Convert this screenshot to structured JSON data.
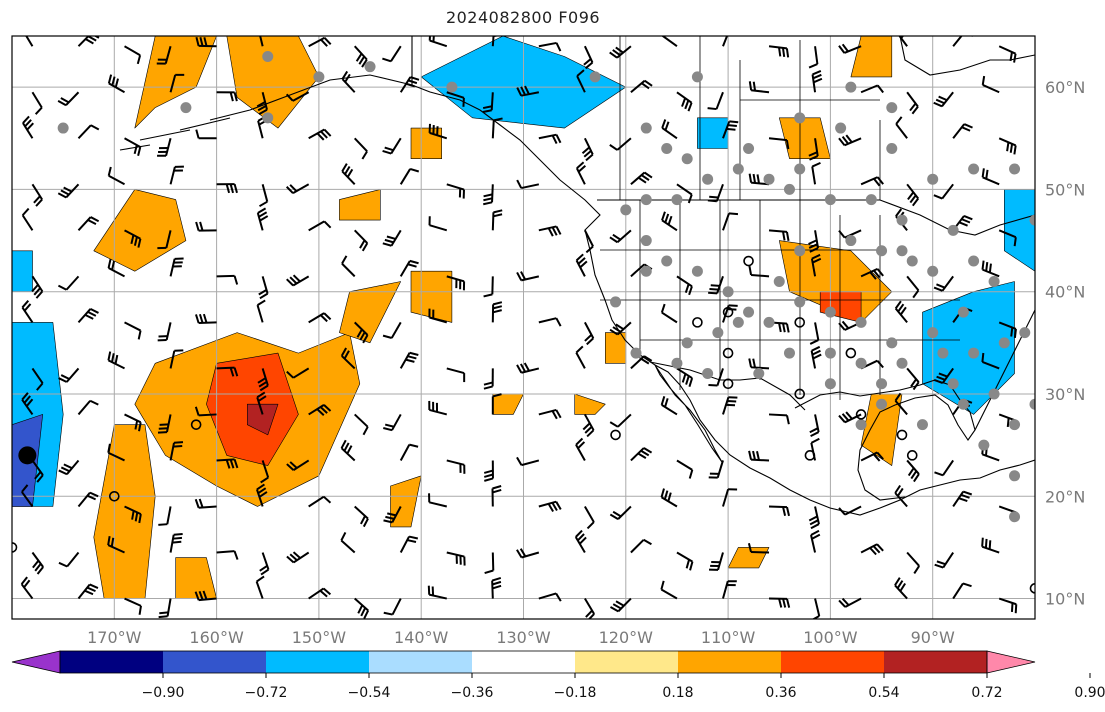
{
  "title": "2024082800 F096",
  "map": {
    "lon_range": [
      -180,
      -80
    ],
    "lat_range": [
      8,
      65
    ],
    "lon_ticks": [
      {
        "value": -170,
        "label": "170°W"
      },
      {
        "value": -160,
        "label": "160°W"
      },
      {
        "value": -150,
        "label": "150°W"
      },
      {
        "value": -140,
        "label": "140°W"
      },
      {
        "value": -130,
        "label": "130°W"
      },
      {
        "value": -120,
        "label": "120°W"
      },
      {
        "value": -110,
        "label": "110°W"
      },
      {
        "value": -100,
        "label": "100°W"
      },
      {
        "value": -90,
        "label": "90°W"
      }
    ],
    "lat_ticks": [
      {
        "value": 60,
        "label": "60°N"
      },
      {
        "value": 50,
        "label": "50°N"
      },
      {
        "value": 40,
        "label": "40°N"
      },
      {
        "value": 30,
        "label": "30°N"
      },
      {
        "value": 20,
        "label": "20°N"
      },
      {
        "value": 10,
        "label": "10°N"
      }
    ],
    "grid": true
  },
  "colorbar": {
    "colors": [
      "#9933cc",
      "#000080",
      "#3355cc",
      "#00bbff",
      "#aaddff",
      "#ffffff",
      "#ffe88a",
      "#ffa500",
      "#ff4500",
      "#b22222",
      "#ff88aa"
    ],
    "tick_labels": [
      "−0.90",
      "−0.72",
      "−0.54",
      "−0.36",
      "−0.18",
      "0.18",
      "0.36",
      "0.54",
      "0.72",
      "0.90"
    ]
  },
  "anomaly_regions": [
    {
      "sign": "positive",
      "level": 0.36,
      "points": [
        [
          -168,
          56
        ],
        [
          -166,
          65
        ],
        [
          -160,
          65
        ],
        [
          -162,
          60
        ],
        [
          -166,
          58
        ]
      ]
    },
    {
      "sign": "positive",
      "level": 0.36,
      "points": [
        [
          -159,
          65
        ],
        [
          -152,
          65
        ],
        [
          -150,
          61
        ],
        [
          -154,
          56
        ],
        [
          -158,
          59
        ]
      ]
    },
    {
      "sign": "positive",
      "level": 0.36,
      "points": [
        [
          -172,
          44
        ],
        [
          -168,
          50
        ],
        [
          -164,
          49
        ],
        [
          -163,
          45
        ],
        [
          -168,
          42
        ]
      ]
    },
    {
      "sign": "positive",
      "level": 0.36,
      "points": [
        [
          -166,
          33
        ],
        [
          -158,
          36
        ],
        [
          -152,
          34
        ],
        [
          -147,
          36
        ],
        [
          -146,
          31
        ],
        [
          -150,
          22
        ],
        [
          -156,
          19
        ],
        [
          -160,
          21
        ],
        [
          -165,
          24
        ],
        [
          -168,
          29
        ]
      ]
    },
    {
      "sign": "positive",
      "level": 0.54,
      "points": [
        [
          -160,
          33
        ],
        [
          -154,
          34
        ],
        [
          -152,
          28
        ],
        [
          -155,
          23
        ],
        [
          -159,
          24
        ],
        [
          -161,
          29
        ]
      ]
    },
    {
      "sign": "positive",
      "level": 0.72,
      "points": [
        [
          -157,
          29
        ],
        [
          -154,
          29
        ],
        [
          -155,
          26
        ],
        [
          -157,
          27
        ]
      ]
    },
    {
      "sign": "positive",
      "level": 0.36,
      "points": [
        [
          -170,
          27
        ],
        [
          -167,
          27
        ],
        [
          -166,
          20
        ],
        [
          -167,
          10
        ],
        [
          -171,
          10
        ],
        [
          -172,
          16
        ]
      ]
    },
    {
      "sign": "positive",
      "level": 0.36,
      "points": [
        [
          -164,
          14
        ],
        [
          -161,
          14
        ],
        [
          -160,
          10
        ],
        [
          -164,
          10
        ]
      ]
    },
    {
      "sign": "positive",
      "level": 0.36,
      "points": [
        [
          -141,
          42
        ],
        [
          -137,
          42
        ],
        [
          -137,
          37
        ],
        [
          -141,
          38
        ]
      ]
    },
    {
      "sign": "positive",
      "level": 0.36,
      "points": [
        [
          -147,
          40
        ],
        [
          -142,
          41
        ],
        [
          -145,
          35
        ],
        [
          -148,
          36
        ]
      ]
    },
    {
      "sign": "positive",
      "level": 0.36,
      "points": [
        [
          -141,
          56
        ],
        [
          -138,
          56
        ],
        [
          -138,
          53
        ],
        [
          -141,
          53
        ]
      ]
    },
    {
      "sign": "positive",
      "level": 0.36,
      "points": [
        [
          -148,
          49
        ],
        [
          -144,
          50
        ],
        [
          -144,
          47
        ],
        [
          -148,
          47
        ]
      ]
    },
    {
      "sign": "positive",
      "level": 0.36,
      "points": [
        [
          -143,
          21
        ],
        [
          -140,
          22
        ],
        [
          -141,
          17
        ],
        [
          -143,
          17
        ]
      ]
    },
    {
      "sign": "positive",
      "level": 0.36,
      "points": [
        [
          -105,
          45
        ],
        [
          -98,
          44
        ],
        [
          -94,
          40
        ],
        [
          -97,
          37
        ],
        [
          -104,
          40
        ]
      ]
    },
    {
      "sign": "positive",
      "level": 0.54,
      "points": [
        [
          -101,
          40
        ],
        [
          -97,
          40
        ],
        [
          -97,
          37
        ],
        [
          -101,
          38
        ]
      ]
    },
    {
      "sign": "positive",
      "level": 0.36,
      "points": [
        [
          -105,
          57
        ],
        [
          -101,
          57
        ],
        [
          -100,
          53
        ],
        [
          -104,
          53
        ]
      ]
    },
    {
      "sign": "positive",
      "level": 0.36,
      "points": [
        [
          -97,
          65
        ],
        [
          -94,
          65
        ],
        [
          -94,
          61
        ],
        [
          -98,
          61
        ]
      ]
    },
    {
      "sign": "positive",
      "level": 0.36,
      "points": [
        [
          -96,
          30
        ],
        [
          -93,
          30
        ],
        [
          -94,
          23
        ],
        [
          -97,
          25
        ]
      ]
    },
    {
      "sign": "positive",
      "level": 0.36,
      "points": [
        [
          -109,
          15
        ],
        [
          -106,
          15
        ],
        [
          -107,
          13
        ],
        [
          -110,
          13
        ]
      ]
    },
    {
      "sign": "positive",
      "level": 0.36,
      "points": [
        [
          -122,
          36
        ],
        [
          -120,
          36
        ],
        [
          -120,
          33
        ],
        [
          -122,
          33
        ]
      ]
    },
    {
      "sign": "positive",
      "level": 0.36,
      "points": [
        [
          -133,
          30
        ],
        [
          -130,
          30
        ],
        [
          -131,
          28
        ],
        [
          -133,
          28
        ]
      ]
    },
    {
      "sign": "positive",
      "level": 0.36,
      "points": [
        [
          -125,
          30
        ],
        [
          -122,
          29
        ],
        [
          -123,
          28
        ],
        [
          -125,
          28
        ]
      ]
    },
    {
      "sign": "negative",
      "level": -0.36,
      "points": [
        [
          -140,
          61
        ],
        [
          -132,
          65
        ],
        [
          -126,
          63
        ],
        [
          -120,
          60
        ],
        [
          -126,
          56
        ],
        [
          -135,
          57
        ]
      ]
    },
    {
      "sign": "negative",
      "level": -0.36,
      "points": [
        [
          -180,
          37
        ],
        [
          -176,
          37
        ],
        [
          -175,
          28
        ],
        [
          -176,
          19
        ],
        [
          -180,
          19
        ]
      ]
    },
    {
      "sign": "negative",
      "level": -0.54,
      "points": [
        [
          -180,
          27
        ],
        [
          -177,
          28
        ],
        [
          -178,
          19
        ],
        [
          -180,
          19
        ]
      ]
    },
    {
      "sign": "negative",
      "level": -0.36,
      "points": [
        [
          -180,
          44
        ],
        [
          -178,
          44
        ],
        [
          -178,
          40
        ],
        [
          -180,
          40
        ]
      ]
    },
    {
      "sign": "negative",
      "level": -0.36,
      "points": [
        [
          -91,
          38
        ],
        [
          -86,
          40
        ],
        [
          -82,
          41
        ],
        [
          -82,
          32
        ],
        [
          -86,
          28
        ],
        [
          -91,
          31
        ]
      ]
    },
    {
      "sign": "negative",
      "level": -0.36,
      "points": [
        [
          -83,
          50
        ],
        [
          -80,
          50
        ],
        [
          -80,
          42
        ],
        [
          -83,
          44
        ]
      ]
    },
    {
      "sign": "negative",
      "level": -0.36,
      "points": [
        [
          -113,
          57
        ],
        [
          -110,
          57
        ],
        [
          -110,
          54
        ],
        [
          -113,
          54
        ]
      ]
    }
  ],
  "storm_marker": {
    "lon": -178.5,
    "lat": 24,
    "symbol": "filled-circle"
  },
  "observations": {
    "filled": [
      [
        -155,
        63
      ],
      [
        -150,
        61
      ],
      [
        -145,
        62
      ],
      [
        -155,
        57
      ],
      [
        -163,
        58
      ],
      [
        -175,
        56
      ],
      [
        -137,
        60
      ],
      [
        -123,
        61
      ],
      [
        -118,
        56
      ],
      [
        -116,
        54
      ],
      [
        -114,
        53
      ],
      [
        -109,
        52
      ],
      [
        -106,
        51
      ],
      [
        -103,
        52
      ],
      [
        -120,
        48
      ],
      [
        -118,
        49
      ],
      [
        -115,
        49
      ],
      [
        -112,
        51
      ],
      [
        -108,
        54
      ],
      [
        -104,
        50
      ],
      [
        -100,
        49
      ],
      [
        -96,
        49
      ],
      [
        -93,
        47
      ],
      [
        -118,
        45
      ],
      [
        -118,
        42
      ],
      [
        -116,
        43
      ],
      [
        -113,
        42
      ],
      [
        -110,
        40
      ],
      [
        -108,
        38
      ],
      [
        -105,
        41
      ],
      [
        -103,
        44
      ],
      [
        -98,
        45
      ],
      [
        -95,
        44
      ],
      [
        -92,
        43
      ],
      [
        -90,
        42
      ],
      [
        -86,
        43
      ],
      [
        -84,
        41
      ],
      [
        -87,
        38
      ],
      [
        -90,
        36
      ],
      [
        -94,
        35
      ],
      [
        -97,
        37
      ],
      [
        -100,
        38
      ],
      [
        -103,
        39
      ],
      [
        -106,
        37
      ],
      [
        -109,
        37
      ],
      [
        -111,
        36
      ],
      [
        -114,
        35
      ],
      [
        -115,
        33
      ],
      [
        -112,
        32
      ],
      [
        -107,
        32
      ],
      [
        -104,
        34
      ],
      [
        -100,
        34
      ],
      [
        -97,
        33
      ],
      [
        -95,
        31
      ],
      [
        -93,
        33
      ],
      [
        -89,
        34
      ],
      [
        -86,
        34
      ],
      [
        -83,
        35
      ],
      [
        -81,
        36
      ],
      [
        -88,
        31
      ],
      [
        -84,
        30
      ],
      [
        -82,
        27
      ],
      [
        -80,
        29
      ],
      [
        -97,
        27
      ],
      [
        -95,
        29
      ],
      [
        -91,
        27
      ],
      [
        -87,
        29
      ],
      [
        -85,
        25
      ],
      [
        -82,
        22
      ],
      [
        -82,
        18
      ],
      [
        -80,
        47
      ],
      [
        -82,
        52
      ],
      [
        -86,
        52
      ],
      [
        -90,
        51
      ],
      [
        -94,
        54
      ],
      [
        -99,
        56
      ],
      [
        -103,
        57
      ],
      [
        -94,
        58
      ],
      [
        -98,
        60
      ],
      [
        -113,
        61
      ],
      [
        -121,
        39
      ],
      [
        -119,
        34
      ],
      [
        -100,
        31
      ],
      [
        -93,
        44
      ],
      [
        -88,
        46
      ]
    ],
    "open": [
      [
        -108,
        43
      ],
      [
        -113,
        37
      ],
      [
        -110,
        34
      ],
      [
        -110,
        31
      ],
      [
        -103,
        30
      ],
      [
        -97,
        28
      ],
      [
        -93,
        26
      ],
      [
        -102,
        24
      ],
      [
        -92,
        24
      ],
      [
        -80,
        11
      ],
      [
        -162,
        27
      ],
      [
        -170,
        20
      ],
      [
        -180,
        15
      ],
      [
        -121,
        26
      ],
      [
        -103,
        37
      ],
      [
        -98,
        34
      ],
      [
        -110,
        38
      ]
    ]
  },
  "wind_barbs": {
    "lon_step": 4.5,
    "lat_step": 4.5,
    "lon_start": -178,
    "lat_start": 10
  }
}
